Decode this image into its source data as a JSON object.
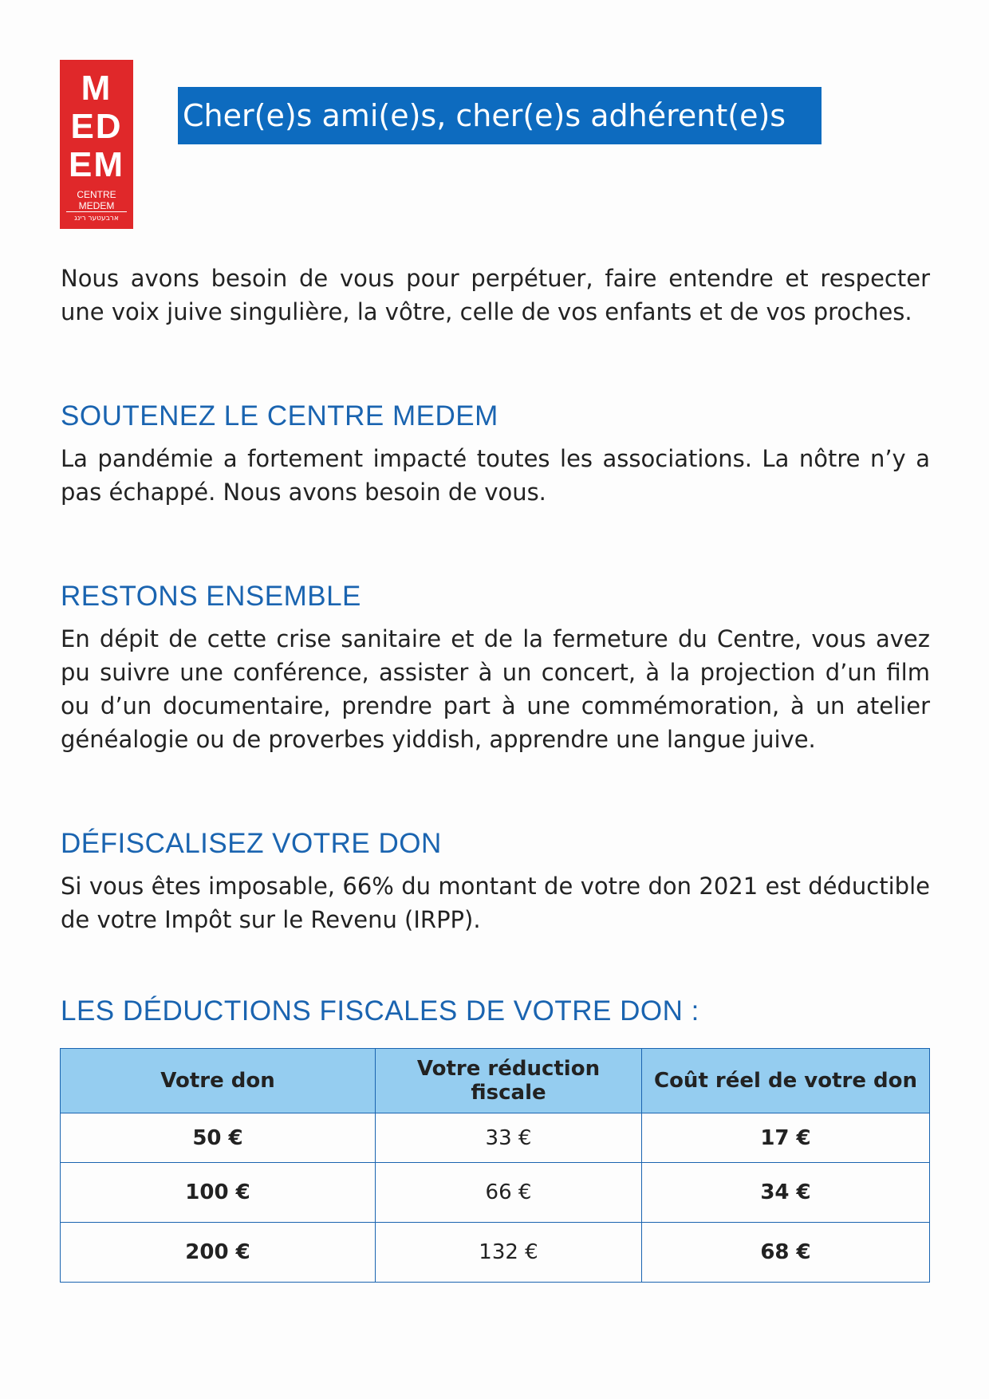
{
  "logo": {
    "letters": [
      "M",
      "ED",
      "EM"
    ],
    "name": "CENTRE MEDEM",
    "hebrew": "ארבעטער רינג"
  },
  "header": {
    "title": "Cher(e)s ami(e)s, cher(e)s adhérent(e)s"
  },
  "intro": "Nous avons besoin de vous pour perpétuer, faire entendre et respecter une voix juive singulière, la vôtre, celle de vos enfants et de vos proches.",
  "sections": [
    {
      "heading": "SOUTENEZ LE CENTRE MEDEM",
      "text": "La pandémie a fortement impacté toutes les associations. La nôtre n’y a pas échappé. Nous avons besoin de vous."
    },
    {
      "heading": "RESTONS ENSEMBLE",
      "text": "En dépit de cette crise sanitaire et de la fermeture du Centre, vous avez pu suivre une conférence, assister à un concert, à la projection d’un film ou d’un documentaire, prendre part à une commémoration, à un atelier généalogie ou de proverbes yiddish, apprendre une langue juive."
    },
    {
      "heading": "DÉFISCALISEZ VOTRE DON",
      "text": "Si vous êtes imposable, 66% du montant de votre don 2021 est déductible de votre Impôt sur le Revenu (IRPP)."
    }
  ],
  "table": {
    "title": "LES DÉDUCTIONS FISCALES DE VOTRE DON :",
    "columns": [
      "Votre don",
      "Votre réduction fiscale",
      "Coût réel de votre don"
    ],
    "rows": [
      [
        "50 €",
        "33 €",
        "17 €"
      ],
      [
        "100 €",
        "66 €",
        "34 €"
      ],
      [
        "200 €",
        "132 €",
        "68 €"
      ]
    ]
  }
}
